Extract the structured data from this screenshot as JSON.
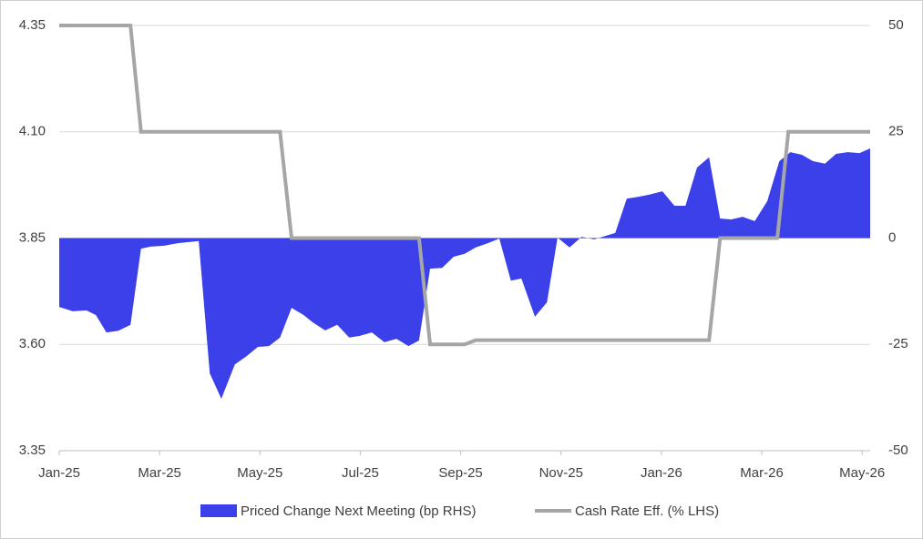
{
  "chart_data": {
    "type": "line",
    "series": [
      {
        "name": "Priced Change Next Meeting (bp RHS)",
        "kind": "area",
        "axis": "y2",
        "color": "#3b40e8",
        "x": [
          0,
          0.27,
          0.54,
          0.73,
          0.94,
          1.18,
          1.42,
          1.63,
          1.82,
          2.09,
          2.36,
          2.78,
          3.0,
          3.23,
          3.5,
          3.72,
          3.96,
          4.18,
          4.4,
          4.63,
          4.87,
          5.05,
          5.3,
          5.54,
          5.78,
          5.99,
          6.23,
          6.48,
          6.72,
          6.96,
          7.17,
          7.39,
          7.63,
          7.86,
          8.08,
          8.3,
          8.54,
          8.77,
          9.0,
          9.21,
          9.48,
          9.72,
          9.93,
          10.17,
          10.41,
          10.66,
          11.08,
          11.31,
          11.53,
          11.75,
          12.02,
          12.26,
          12.48,
          12.71,
          12.95,
          13.17,
          13.39,
          13.62,
          13.86,
          14.11,
          14.35,
          14.57,
          14.8,
          15.02,
          15.26,
          15.48,
          15.71,
          15.95,
          16.16
        ],
        "values": [
          -16.2,
          -17.2,
          -17,
          -18.1,
          -22.2,
          -21.8,
          -20.4,
          -2.5,
          -2,
          -1.8,
          -1.2,
          -0.7,
          -31.8,
          -37.8,
          -29.7,
          -27.9,
          -25.6,
          -25.4,
          -23.4,
          -16.4,
          -18.1,
          -19.8,
          -21.7,
          -20.4,
          -23.4,
          -23,
          -22.2,
          -24.5,
          -23.7,
          -25.4,
          -24.1,
          -7.2,
          -7,
          -4.4,
          -3.7,
          -2.2,
          -1.2,
          -0.1,
          -10,
          -9.5,
          -18.5,
          -15.1,
          0.1,
          -2.2,
          0.3,
          -0.3,
          1.2,
          9.3,
          9.7,
          10.2,
          11,
          7.6,
          7.6,
          16.6,
          19,
          4.6,
          4.4,
          5,
          4,
          8.7,
          18.1,
          20.2,
          19.6,
          18.1,
          17.5,
          19.8,
          20.2,
          20,
          21.1
        ]
      },
      {
        "name": "Cash Rate Eff. (% LHS)",
        "kind": "line",
        "color": "#a6a6a6",
        "x": [
          0,
          1.42,
          1.63,
          4.4,
          4.63,
          7.17,
          7.39,
          8.08,
          8.3,
          12.95,
          13.17,
          14.31,
          14.53,
          16.16
        ],
        "values": [
          4.35,
          4.35,
          4.1,
          4.1,
          3.85,
          3.85,
          3.6,
          3.6,
          3.61,
          3.61,
          3.85,
          3.85,
          4.1,
          4.1
        ]
      }
    ],
    "xlim": [
      0,
      16.16
    ],
    "xticks": [
      {
        "value": 0,
        "label": "Jan-25"
      },
      {
        "value": 2,
        "label": "Mar-25"
      },
      {
        "value": 4,
        "label": "May-25"
      },
      {
        "value": 6,
        "label": "Jul-25"
      },
      {
        "value": 8,
        "label": "Sep-25"
      },
      {
        "value": 10,
        "label": "Nov-25"
      },
      {
        "value": 12,
        "label": "Jan-26"
      },
      {
        "value": 14,
        "label": "Mar-26"
      },
      {
        "value": 16,
        "label": "May-26"
      }
    ],
    "ylim": [
      3.35,
      4.35
    ],
    "yticks": [
      3.35,
      {
        "value": 3.6,
        "label": "3.60"
      },
      3.85,
      {
        "value": 4.1,
        "label": "4.10"
      },
      4.35
    ],
    "y2lim": [
      -50,
      50
    ],
    "y2ticks": [
      -50,
      -25,
      0,
      25,
      50
    ],
    "grid": true,
    "legend": "bottom"
  }
}
